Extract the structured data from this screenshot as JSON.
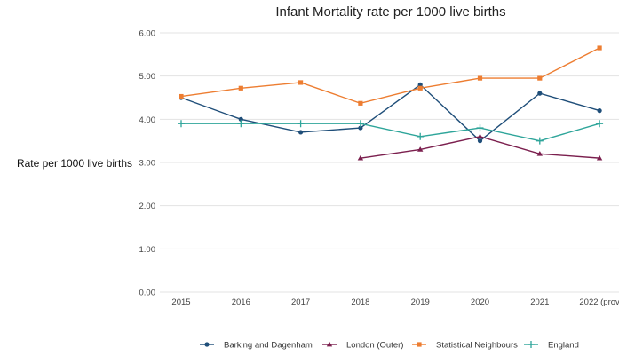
{
  "chart_data": {
    "type": "line",
    "title": "Infant Mortality rate per 1000 live births",
    "ylabel": "Rate per 1000 live births",
    "xlabel": "",
    "categories": [
      "2015",
      "2016",
      "2017",
      "2018",
      "2019",
      "2020",
      "2021",
      "2022 (prov"
    ],
    "ylim": [
      0,
      6
    ],
    "yticks": [
      "0.00",
      "1.00",
      "2.00",
      "3.00",
      "4.00",
      "5.00",
      "6.00"
    ],
    "grid": true,
    "legend_position": "bottom",
    "series": [
      {
        "name": "Barking and Dagenham",
        "color": "#1f4e79",
        "marker": "circle-icon",
        "values": [
          4.5,
          4.0,
          3.7,
          3.8,
          4.8,
          3.5,
          4.6,
          4.2
        ]
      },
      {
        "name": "London (Outer)",
        "color": "#7b1f4e",
        "marker": "triangle-icon",
        "values": [
          null,
          null,
          null,
          3.1,
          3.3,
          3.6,
          3.2,
          3.1
        ]
      },
      {
        "name": "Statistical Neighbours",
        "color": "#ed7d31",
        "marker": "square-icon",
        "values": [
          4.53,
          4.72,
          4.85,
          4.37,
          4.72,
          4.95,
          4.95,
          5.65
        ]
      },
      {
        "name": "England",
        "color": "#2ea59a",
        "marker": "plus-icon",
        "values": [
          3.9,
          3.9,
          3.9,
          3.9,
          3.6,
          3.8,
          3.5,
          3.9
        ]
      }
    ]
  }
}
